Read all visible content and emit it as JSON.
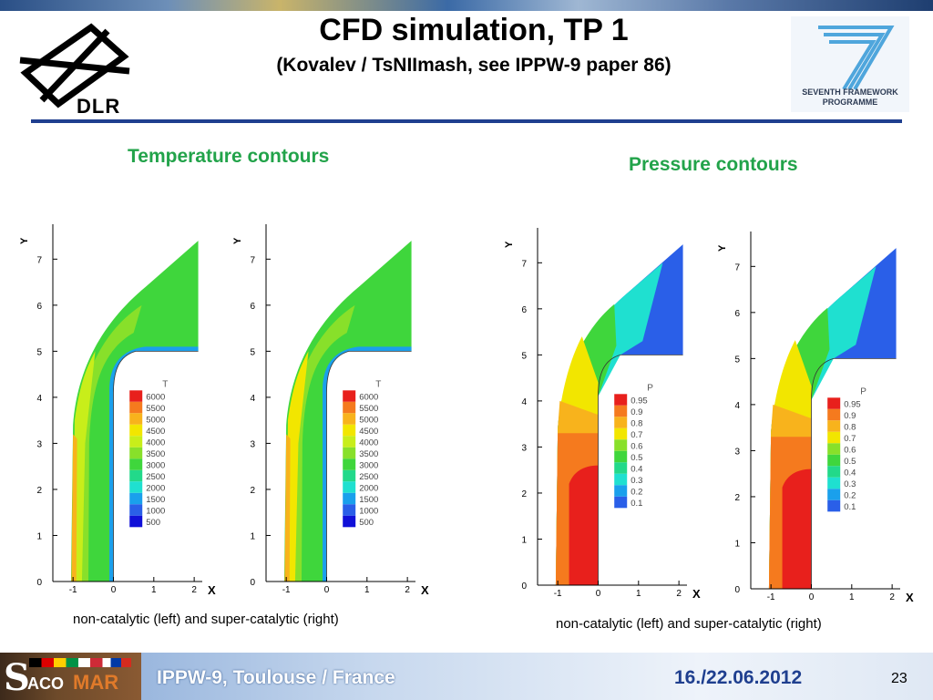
{
  "header": {
    "title": "CFD simulation, TP 1",
    "subtitle": "(Kovalev / TsNIImash, see IPPW-9 paper 86)",
    "left_logo_text": "DLR",
    "right_logo_lines": [
      "SEVENTH FRAMEWORK",
      "PROGRAMME"
    ]
  },
  "sections": {
    "temperature_heading": "Temperature contours",
    "pressure_heading": "Pressure contours",
    "temperature_caption": "non-catalytic (left) and super-catalytic (right)",
    "pressure_caption": "non-catalytic (left) and super-catalytic (right)"
  },
  "footer": {
    "logo_s": "S",
    "logo_aco": "ACO",
    "logo_mar": "MAR",
    "conference": "IPPW-9, Toulouse / France",
    "date": "16./22.06.2012",
    "page": "23"
  },
  "colors": {
    "accent_rule": "#1f3f8f",
    "heading_green": "#22a34a"
  },
  "chart_data": [
    {
      "type": "heatmap",
      "variable": "T",
      "xlabel": "X",
      "ylabel": "Y",
      "xticks": [
        "-1",
        "0",
        "1",
        "2"
      ],
      "yticks": [
        "0",
        "1",
        "2",
        "3",
        "4",
        "5",
        "6",
        "7"
      ],
      "xlim": [
        -1.5,
        2.2
      ],
      "ylim": [
        0,
        7.6
      ],
      "legend_title": "T",
      "legend_levels": [
        "6000",
        "5500",
        "5000",
        "4500",
        "4000",
        "3500",
        "3000",
        "2500",
        "2000",
        "1500",
        "1000",
        "500"
      ],
      "legend_colors": [
        "#e8201c",
        "#f57a1e",
        "#f8b31c",
        "#f2e600",
        "#c8ee1a",
        "#88e02a",
        "#3fd63c",
        "#22d98a",
        "#1fe0d0",
        "#1aa0ec",
        "#2a5fe8",
        "#1010d8"
      ],
      "field": "T",
      "case_levels": {
        "shock": 2,
        "mid": 4,
        "body": 6,
        "lobe": 5,
        "far": 6
      }
    },
    {
      "type": "heatmap",
      "variable": "T",
      "xlabel": "X",
      "ylabel": "Y",
      "xticks": [
        "-1",
        "0",
        "1",
        "2"
      ],
      "yticks": [
        "0",
        "1",
        "2",
        "3",
        "4",
        "5",
        "6",
        "7"
      ],
      "xlim": [
        -1.5,
        2.2
      ],
      "ylim": [
        0,
        7.6
      ],
      "legend_title": "T",
      "legend_levels": [
        "6000",
        "5500",
        "5000",
        "4500",
        "4000",
        "3500",
        "3000",
        "2500",
        "2000",
        "1500",
        "1000",
        "500"
      ],
      "legend_colors": [
        "#e8201c",
        "#f57a1e",
        "#f8b31c",
        "#f2e600",
        "#c8ee1a",
        "#88e02a",
        "#3fd63c",
        "#22d98a",
        "#1fe0d0",
        "#1aa0ec",
        "#2a5fe8",
        "#1010d8"
      ],
      "field": "T",
      "case_levels": {
        "shock": 2,
        "mid": 3,
        "body": 6,
        "lobe": 5,
        "far": 6
      }
    },
    {
      "type": "heatmap",
      "variable": "P",
      "xlabel": "X",
      "ylabel": "Y",
      "xticks": [
        "-1",
        "0",
        "1",
        "2"
      ],
      "yticks": [
        "0",
        "1",
        "2",
        "3",
        "4",
        "5",
        "6",
        "7"
      ],
      "xlim": [
        -1.5,
        2.2
      ],
      "ylim": [
        0,
        7.6
      ],
      "legend_title": "P",
      "legend_levels": [
        "0.95",
        "0.9",
        "0.8",
        "0.7",
        "0.6",
        "0.5",
        "0.4",
        "0.3",
        "0.2",
        "0.1"
      ],
      "legend_colors": [
        "#e8201c",
        "#f57a1e",
        "#f8b31c",
        "#f2e600",
        "#88e02a",
        "#3fd63c",
        "#22d98a",
        "#1fe0d0",
        "#1aa0ec",
        "#2a5fe8"
      ],
      "field": "P"
    },
    {
      "type": "heatmap",
      "variable": "P",
      "xlabel": "X",
      "ylabel": "Y",
      "xticks": [
        "-1",
        "0",
        "1",
        "2"
      ],
      "yticks": [
        "0",
        "1",
        "2",
        "3",
        "4",
        "5",
        "6",
        "7"
      ],
      "xlim": [
        -1.5,
        2.2
      ],
      "ylim": [
        0,
        7.6
      ],
      "legend_title": "P",
      "legend_levels": [
        "0.95",
        "0.9",
        "0.8",
        "0.7",
        "0.6",
        "0.5",
        "0.4",
        "0.3",
        "0.2",
        "0.1"
      ],
      "legend_colors": [
        "#e8201c",
        "#f57a1e",
        "#f8b31c",
        "#f2e600",
        "#88e02a",
        "#3fd63c",
        "#22d98a",
        "#1fe0d0",
        "#1aa0ec",
        "#2a5fe8"
      ],
      "field": "P"
    }
  ]
}
